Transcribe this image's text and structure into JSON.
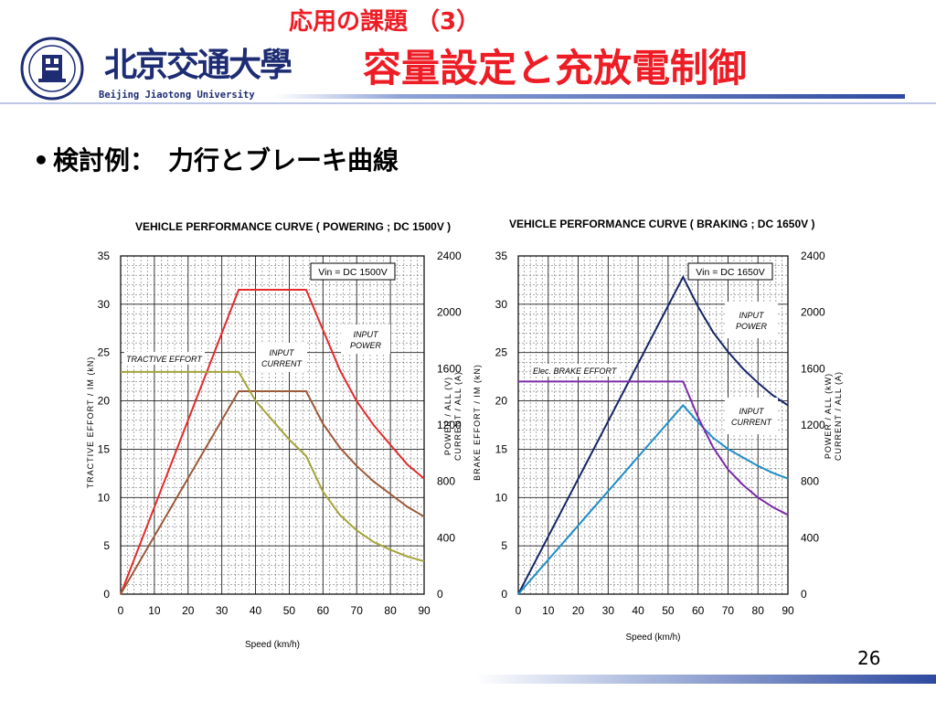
{
  "slide": {
    "subtitle": "応用の課題 （3）",
    "title": "容量設定と充放電制御",
    "bullet": "検討例：　力行とブレーキ曲線",
    "page_number": "26",
    "logo_text": "北京交通大學",
    "logo_sub": "Beijing Jiaotong University",
    "colors": {
      "title": "#ee1c25",
      "navy": "#1d2c73"
    }
  },
  "chart_data": [
    {
      "type": "line",
      "title": "VEHICLE PERFORMANCE CURVE ( POWERING ; DC 1500V )",
      "box_label": "Vin =  DC 1500V",
      "xlabel": "Speed (km/h)",
      "ylabel_left": "TRACTIVE EFFORT / IM (kN)",
      "ylabel_right_1": "POWER / ALL (V)",
      "ylabel_right_2": "CURRENT / ALL (A)",
      "xlim": [
        0,
        90
      ],
      "ylim_left": [
        0,
        35
      ],
      "ylim_right": [
        0,
        2400
      ],
      "x_ticks": [
        "0",
        "10",
        "20",
        "30",
        "40",
        "50",
        "60",
        "70",
        "80",
        "90"
      ],
      "y_ticks_left": [
        "0",
        "5",
        "10",
        "15",
        "20",
        "25",
        "30",
        "35"
      ],
      "y_ticks_right": [
        "0",
        "400",
        "800",
        "1200",
        "1600",
        "2000",
        "2400"
      ],
      "annotations": [
        "TRACTIVE EFFORT",
        "INPUT CURRENT",
        "INPUT POWER"
      ],
      "series": [
        {
          "color": "#e32b2b",
          "axis": "right",
          "x": [
            0,
            35,
            55,
            65,
            70,
            75,
            80,
            85,
            90
          ],
          "y": [
            0,
            2160,
            2160,
            1590,
            1370,
            1200,
            1060,
            920,
            820
          ]
        },
        {
          "color": "#9d5a3a",
          "axis": "right",
          "x": [
            0,
            35,
            55,
            60,
            65,
            70,
            75,
            80,
            85,
            90
          ],
          "y": [
            0,
            1440,
            1440,
            1210,
            1040,
            910,
            800,
            710,
            620,
            550
          ]
        },
        {
          "color": "#a4a43a",
          "axis": "left",
          "x": [
            0,
            35,
            40,
            45,
            50,
            55,
            60,
            65,
            70,
            75,
            80,
            85,
            90
          ],
          "y": [
            23,
            23,
            20,
            18,
            16,
            14.3,
            10.6,
            8.2,
            6.6,
            5.4,
            4.6,
            3.9,
            3.4
          ]
        }
      ]
    },
    {
      "type": "line",
      "title": "VEHICLE PERFORMANCE CURVE ( BRAKING ; DC 1650V )",
      "box_label": "Vin  =  DC 1650V",
      "xlabel": "Speed (km/h)",
      "ylabel_left": "BRAKE EFFORT / IM (kN)",
      "ylabel_right_1": "POWER / ALL (kW)",
      "ylabel_right_2": "CURRENT / ALL (A)",
      "xlim": [
        0,
        90
      ],
      "ylim_left": [
        0,
        35
      ],
      "ylim_right": [
        0,
        2400
      ],
      "x_ticks": [
        "0",
        "10",
        "20",
        "30",
        "40",
        "50",
        "60",
        "70",
        "80",
        "90"
      ],
      "y_ticks_left": [
        "0",
        "5",
        "10",
        "15",
        "20",
        "25",
        "30",
        "35"
      ],
      "y_ticks_right": [
        "0",
        "400",
        "800",
        "1200",
        "1600",
        "2000",
        "2400"
      ],
      "annotations": [
        "Elec. BRAKE EFFORT",
        "INPUT POWER",
        "INPUT CURRENT"
      ],
      "series": [
        {
          "color": "#162566",
          "axis": "right",
          "x": [
            0,
            55,
            60,
            65,
            70,
            75,
            80,
            85,
            90
          ],
          "y": [
            0,
            2250,
            2040,
            1860,
            1720,
            1600,
            1500,
            1410,
            1340
          ]
        },
        {
          "color": "#1f8fc6",
          "axis": "right",
          "x": [
            0,
            55,
            60,
            65,
            70,
            75,
            80,
            85,
            90
          ],
          "y": [
            0,
            1340,
            1220,
            1110,
            1030,
            970,
            910,
            860,
            820
          ]
        },
        {
          "color": "#7b2ca8",
          "axis": "left",
          "x": [
            0,
            55,
            60,
            65,
            70,
            75,
            80,
            85,
            90
          ],
          "y": [
            22,
            22,
            18.3,
            15.2,
            12.9,
            11.3,
            10.0,
            9.0,
            8.2
          ]
        }
      ]
    }
  ]
}
